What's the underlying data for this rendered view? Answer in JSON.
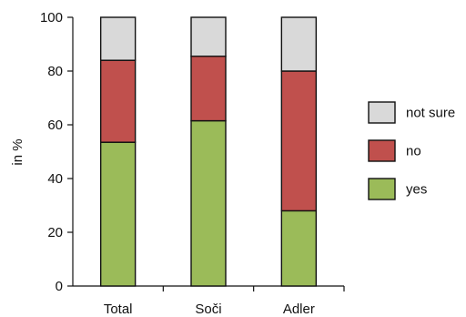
{
  "chart_data": {
    "type": "bar",
    "stacked": true,
    "title": "",
    "xlabel": "",
    "ylabel": "in %",
    "ylim": [
      0,
      100
    ],
    "yticks": [
      "0",
      "20",
      "40",
      "60",
      "80",
      "100"
    ],
    "grid": false,
    "legend_position": "right",
    "categories": [
      "Total",
      "Soči",
      "Adler"
    ],
    "series": [
      {
        "name": "yes",
        "color": "#9bbb59",
        "values": [
          53.5,
          61.5,
          28
        ]
      },
      {
        "name": "no",
        "color": "#c0504d",
        "values": [
          30.5,
          24,
          52
        ]
      },
      {
        "name": "not sure",
        "color": "#d9d9d9",
        "values": [
          16,
          14.5,
          20
        ]
      }
    ],
    "legend_order": [
      "not sure",
      "no",
      "yes"
    ]
  }
}
